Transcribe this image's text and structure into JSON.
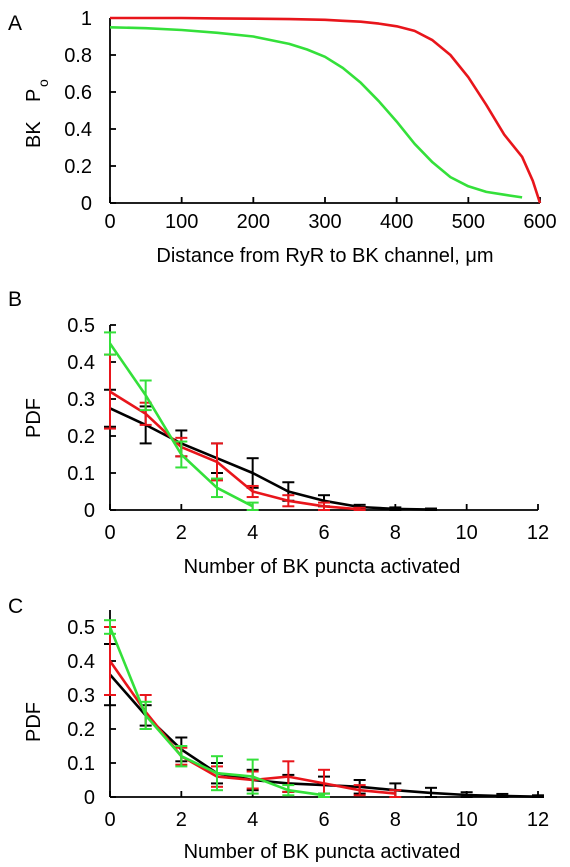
{
  "chart_data": [
    {
      "panel": "A",
      "type": "line",
      "xlabel": "Distance from RyR to BK channel, μm",
      "ylabel": "BK",
      "ylabel_main": "BK",
      "ylabel_p": "P",
      "ylabel_sub": "o",
      "xlim": [
        0,
        600
      ],
      "ylim": [
        0,
        1
      ],
      "xticks": [
        0,
        100,
        200,
        300,
        400,
        500,
        600
      ],
      "yticks": [
        0,
        0.2,
        0.4,
        0.6,
        0.8,
        1
      ],
      "ytick_labels": [
        "0",
        "0.2",
        "0.4",
        "0.6",
        "0.8",
        "1"
      ],
      "series": [
        {
          "color": "#e8151b",
          "x": [
            0,
            50,
            100,
            150,
            200,
            250,
            300,
            325,
            350,
            375,
            400,
            425,
            450,
            475,
            500,
            525,
            550,
            575,
            590,
            600
          ],
          "y": [
            1.0,
            1.0,
            1.0,
            0.998,
            0.996,
            0.994,
            0.99,
            0.985,
            0.98,
            0.97,
            0.955,
            0.93,
            0.88,
            0.8,
            0.68,
            0.53,
            0.37,
            0.25,
            0.12,
            0.0
          ]
        },
        {
          "color": "#34e03a",
          "x": [
            0,
            50,
            100,
            150,
            200,
            250,
            275,
            300,
            325,
            350,
            375,
            400,
            425,
            450,
            475,
            500,
            525,
            550,
            575
          ],
          "y": [
            0.95,
            0.945,
            0.935,
            0.92,
            0.9,
            0.86,
            0.83,
            0.79,
            0.73,
            0.65,
            0.55,
            0.44,
            0.32,
            0.22,
            0.14,
            0.09,
            0.06,
            0.045,
            0.03
          ]
        }
      ]
    },
    {
      "panel": "B",
      "type": "line",
      "xlabel": "Number of BK puncta activated",
      "ylabel": "PDF",
      "xlim": [
        0,
        12
      ],
      "ylim": [
        0,
        0.5
      ],
      "xticks": [
        0,
        2,
        4,
        6,
        8,
        10,
        12
      ],
      "yticks": [
        0,
        0.1,
        0.2,
        0.3,
        0.4,
        0.5
      ],
      "ytick_labels": [
        "0",
        "0.1",
        "0.2",
        "0.3",
        "0.4",
        "0.5"
      ],
      "series": [
        {
          "color": "#000000",
          "x": [
            0,
            1,
            2,
            3,
            4,
            5,
            6,
            7,
            8,
            9
          ],
          "y": [
            0.275,
            0.23,
            0.18,
            0.14,
            0.1,
            0.05,
            0.025,
            0.008,
            0.003,
            0.001
          ],
          "err": [
            0.05,
            0.05,
            0.035,
            0.04,
            0.04,
            0.025,
            0.015,
            0.006,
            0.004,
            0.003
          ]
        },
        {
          "color": "#e8151b",
          "x": [
            0,
            1,
            2,
            3,
            4,
            5,
            6,
            7
          ],
          "y": [
            0.32,
            0.26,
            0.17,
            0.13,
            0.05,
            0.025,
            0.01,
            0.002
          ],
          "err": [
            0.1,
            0.03,
            0.025,
            0.05,
            0.015,
            0.015,
            0.01,
            0.004
          ]
        },
        {
          "color": "#34e03a",
          "x": [
            0,
            1,
            2,
            3,
            4
          ],
          "y": [
            0.45,
            0.31,
            0.15,
            0.06,
            0.01
          ],
          "err": [
            0.03,
            0.04,
            0.035,
            0.025,
            0.01
          ]
        }
      ]
    },
    {
      "panel": "C",
      "type": "line",
      "xlabel": "Number of BK puncta activated",
      "ylabel": "PDF",
      "xlim": [
        0,
        12
      ],
      "ylim": [
        0,
        0.55
      ],
      "xticks": [
        0,
        2,
        4,
        6,
        8,
        10,
        12
      ],
      "yticks": [
        0,
        0.1,
        0.2,
        0.3,
        0.4,
        0.5
      ],
      "ytick_labels": [
        "0",
        "0.1",
        "0.2",
        "0.3",
        "0.4",
        "0.5"
      ],
      "series": [
        {
          "color": "#000000",
          "x": [
            0,
            1,
            2,
            3,
            4,
            5,
            6,
            7,
            8,
            9,
            10,
            11,
            12
          ],
          "y": [
            0.36,
            0.24,
            0.14,
            0.07,
            0.05,
            0.04,
            0.035,
            0.03,
            0.02,
            0.012,
            0.006,
            0.003,
            0.001
          ],
          "err": [
            0.09,
            0.03,
            0.035,
            0.03,
            0.03,
            0.025,
            0.025,
            0.02,
            0.02,
            0.015,
            0.008,
            0.006,
            0.004
          ]
        },
        {
          "color": "#e8151b",
          "x": [
            0,
            1,
            2,
            3,
            4,
            5,
            6,
            7,
            8
          ],
          "y": [
            0.4,
            0.25,
            0.12,
            0.06,
            0.05,
            0.06,
            0.04,
            0.02,
            0.01
          ],
          "err": [
            0.1,
            0.05,
            0.025,
            0.03,
            0.025,
            0.045,
            0.04,
            0.015,
            0.01
          ]
        },
        {
          "color": "#34e03a",
          "x": [
            0,
            1,
            2,
            3,
            4,
            5,
            6
          ],
          "y": [
            0.5,
            0.24,
            0.12,
            0.07,
            0.06,
            0.02,
            0.005
          ],
          "err": [
            0.02,
            0.04,
            0.03,
            0.05,
            0.05,
            0.015,
            0.005
          ]
        }
      ]
    }
  ],
  "panels": {
    "A": {
      "letter": "A"
    },
    "B": {
      "letter": "B"
    },
    "C": {
      "letter": "C"
    }
  }
}
